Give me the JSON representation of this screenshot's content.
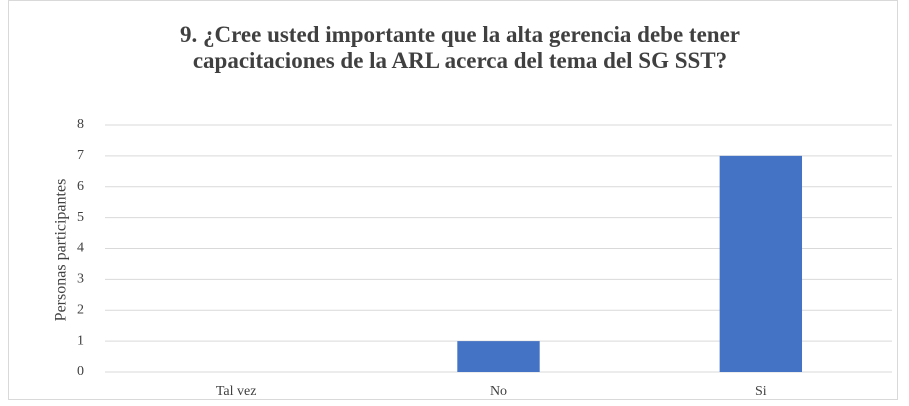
{
  "chart_data": {
    "type": "bar",
    "title": "9. ¿Cree usted importante que la alta gerencia debe tener capacitaciones de la ARL acerca del tema del SG SST?",
    "ylabel": "Personas participantes",
    "categories": [
      "Tal vez",
      "No",
      "Si"
    ],
    "values": [
      0,
      1,
      7
    ],
    "color": "#4472c4",
    "ylim": [
      0,
      8
    ],
    "yticks": [
      0,
      1,
      2,
      3,
      4,
      5,
      6,
      7,
      8
    ],
    "grid": true
  }
}
